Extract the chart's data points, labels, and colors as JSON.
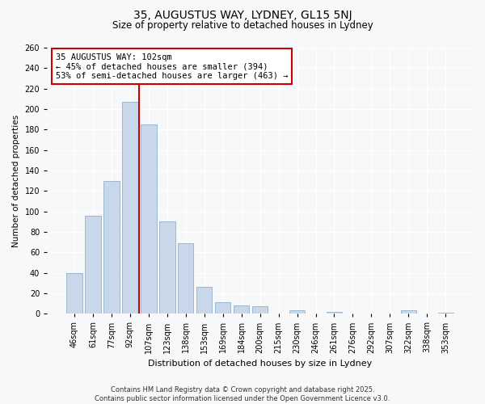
{
  "title": "35, AUGUSTUS WAY, LYDNEY, GL15 5NJ",
  "subtitle": "Size of property relative to detached houses in Lydney",
  "xlabel": "Distribution of detached houses by size in Lydney",
  "ylabel": "Number of detached properties",
  "categories": [
    "46sqm",
    "61sqm",
    "77sqm",
    "92sqm",
    "107sqm",
    "123sqm",
    "138sqm",
    "153sqm",
    "169sqm",
    "184sqm",
    "200sqm",
    "215sqm",
    "230sqm",
    "246sqm",
    "261sqm",
    "276sqm",
    "292sqm",
    "307sqm",
    "322sqm",
    "338sqm",
    "353sqm"
  ],
  "values": [
    40,
    96,
    130,
    207,
    185,
    90,
    69,
    26,
    11,
    8,
    7,
    0,
    3,
    0,
    2,
    0,
    0,
    0,
    3,
    0,
    1
  ],
  "bar_color": "#c8d8ea",
  "bar_edge_color": "#9ab8d0",
  "vline_color": "#cc0000",
  "annotation_line1": "35 AUGUSTUS WAY: 102sqm",
  "annotation_line2": "← 45% of detached houses are smaller (394)",
  "annotation_line3": "53% of semi-detached houses are larger (463) →",
  "annotation_box_color": "#ffffff",
  "annotation_box_edge_color": "#cc0000",
  "ylim": [
    0,
    260
  ],
  "yticks": [
    0,
    20,
    40,
    60,
    80,
    100,
    120,
    140,
    160,
    180,
    200,
    220,
    240,
    260
  ],
  "footer_line1": "Contains HM Land Registry data © Crown copyright and database right 2025.",
  "footer_line2": "Contains public sector information licensed under the Open Government Licence v3.0.",
  "bg_color": "#f7f8fa",
  "plot_bg_color": "#f7f8fa",
  "grid_color": "#ffffff",
  "title_fontsize": 10,
  "subtitle_fontsize": 8.5,
  "ylabel_fontsize": 7.5,
  "xlabel_fontsize": 8,
  "tick_fontsize": 7,
  "annotation_fontsize": 7.5,
  "footer_fontsize": 6
}
